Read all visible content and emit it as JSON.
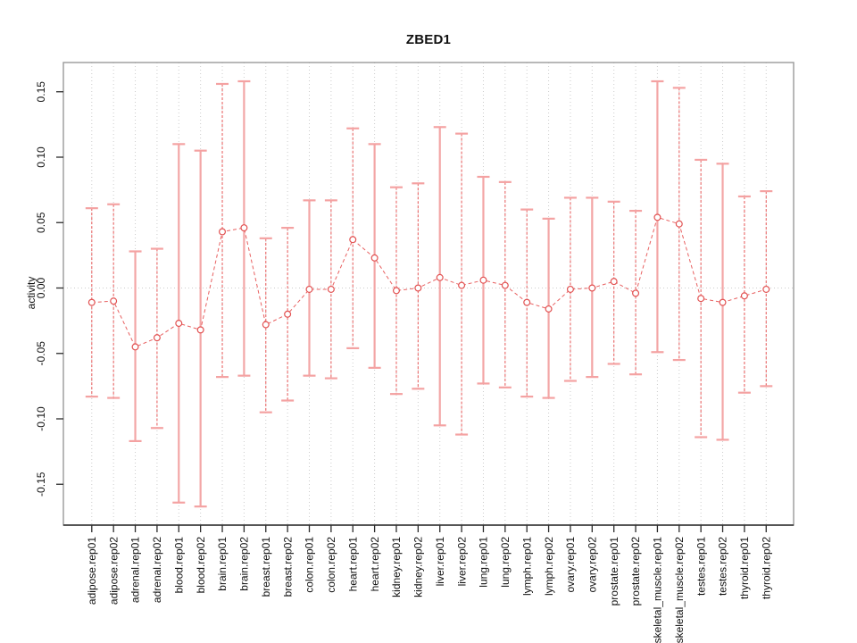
{
  "page": {
    "background": "#ffffff"
  },
  "chart_data": {
    "type": "scatter",
    "title": "ZBED1",
    "xlabel": "",
    "ylabel": "activity",
    "ylim": [
      -0.18,
      0.172
    ],
    "grid": {
      "vertical_dotted_per_category": true,
      "dotted_zero_line": true
    },
    "legend": "none",
    "yticks": [
      0.15,
      0.1,
      0.05,
      0.0,
      -0.05,
      -0.1,
      -0.15
    ],
    "ytick_labels": [
      "0.15",
      "0.10",
      "0.05",
      "0.00",
      "-0.05",
      "-0.10",
      "-0.15"
    ],
    "categories": [
      "adipose.rep01",
      "adipose.rep02",
      "adrenal.rep01",
      "adrenal.rep02",
      "blood.rep01",
      "blood.rep02",
      "brain.rep01",
      "brain.rep02",
      "breast.rep01",
      "breast.rep02",
      "colon.rep01",
      "colon.rep02",
      "heart.rep01",
      "heart.rep02",
      "kidney.rep01",
      "kidney.rep02",
      "liver.rep01",
      "liver.rep02",
      "lung.rep01",
      "lung.rep02",
      "lymph.rep01",
      "lymph.rep02",
      "ovary.rep01",
      "ovary.rep02",
      "prostate.rep01",
      "prostate.rep02",
      "skeletal_muscle.rep01",
      "skeletal_muscle.rep02",
      "testes.rep01",
      "testes.rep02",
      "thyroid.rep01",
      "thyroid.rep02"
    ],
    "series": [
      {
        "name": "activity",
        "values": [
          -0.011,
          -0.01,
          -0.045,
          -0.038,
          -0.027,
          -0.032,
          0.043,
          0.046,
          -0.028,
          -0.02,
          -0.001,
          -0.001,
          0.037,
          0.023,
          -0.002,
          0.0,
          0.008,
          0.002,
          0.006,
          0.002,
          -0.011,
          -0.016,
          -0.001,
          0.0,
          0.005,
          -0.004,
          0.054,
          0.049,
          -0.008,
          -0.011,
          -0.006,
          -0.001
        ],
        "lower": [
          -0.083,
          -0.084,
          -0.117,
          -0.107,
          -0.164,
          -0.167,
          -0.068,
          -0.067,
          -0.095,
          -0.086,
          -0.067,
          -0.069,
          -0.046,
          -0.061,
          -0.081,
          -0.077,
          -0.105,
          -0.112,
          -0.073,
          -0.076,
          -0.083,
          -0.084,
          -0.071,
          -0.068,
          -0.058,
          -0.066,
          -0.049,
          -0.055,
          -0.114,
          -0.116,
          -0.08,
          -0.075
        ],
        "upper": [
          0.061,
          0.064,
          0.028,
          0.03,
          0.11,
          0.105,
          0.156,
          0.158,
          0.038,
          0.046,
          0.067,
          0.067,
          0.122,
          0.11,
          0.077,
          0.08,
          0.123,
          0.118,
          0.085,
          0.081,
          0.06,
          0.053,
          0.069,
          0.069,
          0.066,
          0.059,
          0.158,
          0.153,
          0.098,
          0.095,
          0.07,
          0.074
        ]
      }
    ],
    "bar_styles": [
      "dashed",
      "dashed",
      "solid",
      "dashed",
      "solid",
      "solid",
      "dashed",
      "solid",
      "dashed",
      "dashed",
      "solid",
      "dashed",
      "dashed",
      "solid",
      "dashed",
      "dashed",
      "solid",
      "dashed",
      "solid",
      "dashed",
      "dashed",
      "solid",
      "dashed",
      "solid",
      "dashed",
      "dashed",
      "solid",
      "dashed",
      "dashed",
      "solid",
      "dashed",
      "dashed"
    ],
    "colors": {
      "error_bar_solid": "#f3a6a6",
      "error_bar_dashed": "#ea6868",
      "cap": "#f4a2a2",
      "point_stroke": "#e25252",
      "point_fill": "#ffffff",
      "trace_line": "#e86060",
      "gridline": "#cccccc",
      "box": "#999999",
      "axis": "#2b2b2b",
      "text": "#111111"
    }
  }
}
